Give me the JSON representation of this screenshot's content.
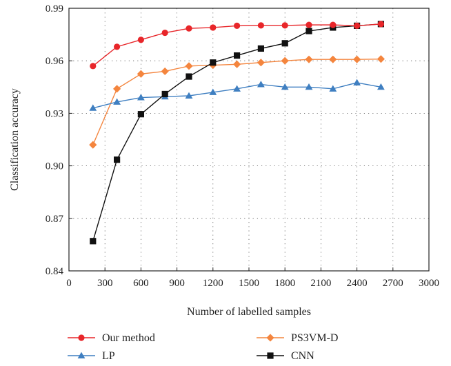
{
  "chart_data": {
    "type": "line",
    "xlabel": "Number of labelled samples",
    "ylabel": "Classification accuracy",
    "xlim": [
      0,
      3000
    ],
    "ylim": [
      0.84,
      0.99
    ],
    "xticks": [
      0,
      300,
      600,
      900,
      1200,
      1500,
      1800,
      2100,
      2400,
      2700,
      3000
    ],
    "yticks": [
      0.84,
      0.87,
      0.9,
      0.93,
      0.96,
      0.99
    ],
    "xtick_labels": [
      "0",
      "300",
      "600",
      "900",
      "1200",
      "1500",
      "1800",
      "2100",
      "2400",
      "2700",
      "3000"
    ],
    "ytick_labels": [
      "0.84",
      "0.87",
      "0.90",
      "0.93",
      "0.96",
      "0.99"
    ],
    "grid": "dotted",
    "legend_position": "bottom",
    "x": [
      200,
      400,
      600,
      800,
      1000,
      1200,
      1400,
      1600,
      1800,
      2000,
      2200,
      2400,
      2600
    ],
    "series": [
      {
        "name": "Our method",
        "color": "#e8262a",
        "marker": "circle",
        "values": [
          0.957,
          0.968,
          0.972,
          0.976,
          0.9785,
          0.979,
          0.98,
          0.9802,
          0.9802,
          0.9805,
          0.9805,
          0.98,
          0.981
        ]
      },
      {
        "name": "PS3VM-D",
        "color": "#f4853e",
        "marker": "diamond",
        "values": [
          0.912,
          0.944,
          0.9525,
          0.954,
          0.957,
          0.9575,
          0.958,
          0.959,
          0.96,
          0.9608,
          0.9608,
          0.9608,
          0.961
        ]
      },
      {
        "name": "LP",
        "color": "#3f7fc1",
        "marker": "triangle",
        "values": [
          0.933,
          0.9365,
          0.939,
          0.9395,
          0.94,
          0.942,
          0.944,
          0.9465,
          0.945,
          0.945,
          0.944,
          0.9475,
          0.945
        ]
      },
      {
        "name": "CNN",
        "color": "#111111",
        "marker": "square",
        "values": [
          0.857,
          0.9035,
          0.9295,
          0.941,
          0.951,
          0.959,
          0.963,
          0.967,
          0.97,
          0.977,
          0.979,
          0.98,
          0.981
        ]
      }
    ]
  }
}
